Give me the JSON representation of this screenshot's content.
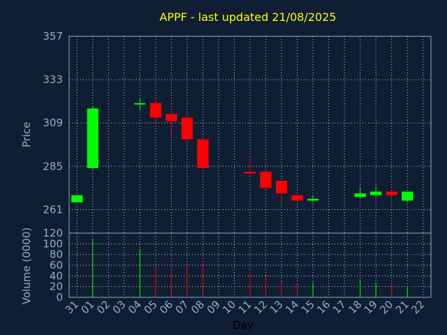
{
  "chart_data": {
    "type": "candlestick",
    "title": "APPF - last updated 21/08/2025",
    "price_axis": {
      "label": "Price",
      "ticks": [
        261,
        285,
        309,
        333,
        357
      ],
      "ylim": [
        248,
        357
      ]
    },
    "volume_axis": {
      "label": "Volume (0000)",
      "ticks": [
        0,
        20,
        40,
        60,
        80,
        100,
        120
      ],
      "ylim": [
        0,
        120
      ]
    },
    "xlabel": "Day",
    "days": [
      "31",
      "01",
      "02",
      "03",
      "04",
      "05",
      "06",
      "07",
      "08",
      "09",
      "10",
      "11",
      "12",
      "13",
      "14",
      "15",
      "16",
      "17",
      "18",
      "19",
      "20",
      "21",
      "22"
    ],
    "candles": [
      {
        "day": "31",
        "open": 265,
        "high": 269,
        "low": 265,
        "close": 269,
        "volume": 0
      },
      {
        "day": "01",
        "open": 284,
        "high": 318,
        "low": 283,
        "close": 317,
        "volume": 110
      },
      {
        "day": "04",
        "open": 320,
        "high": 323,
        "low": 316,
        "close": 320,
        "volume": 90
      },
      {
        "day": "05",
        "open": 320,
        "high": 321,
        "low": 309,
        "close": 312,
        "volume": 58
      },
      {
        "day": "06",
        "open": 314,
        "high": 314,
        "low": 302,
        "close": 310,
        "volume": 50
      },
      {
        "day": "07",
        "open": 312,
        "high": 314,
        "low": 299,
        "close": 300,
        "volume": 60
      },
      {
        "day": "08",
        "open": 300,
        "high": 300,
        "low": 284,
        "close": 284,
        "volume": 65
      },
      {
        "day": "11",
        "open": 282,
        "high": 290,
        "low": 280,
        "close": 281,
        "volume": 47
      },
      {
        "day": "12",
        "open": 282,
        "high": 282,
        "low": 272,
        "close": 273,
        "volume": 40
      },
      {
        "day": "13",
        "open": 277,
        "high": 277,
        "low": 265,
        "close": 270,
        "volume": 30
      },
      {
        "day": "14",
        "open": 269,
        "high": 269,
        "low": 265,
        "close": 266,
        "volume": 25
      },
      {
        "day": "15",
        "open": 266,
        "high": 269,
        "low": 265,
        "close": 267,
        "volume": 28
      },
      {
        "day": "18",
        "open": 268,
        "high": 273,
        "low": 267,
        "close": 270,
        "volume": 32
      },
      {
        "day": "19",
        "open": 269,
        "high": 274,
        "low": 268,
        "close": 271,
        "volume": 27
      },
      {
        "day": "20",
        "open": 271,
        "high": 272,
        "low": 268,
        "close": 269,
        "volume": 23
      },
      {
        "day": "21",
        "open": 266,
        "high": 271,
        "low": 265,
        "close": 271,
        "volume": 19
      }
    ],
    "colors": {
      "up": "#00ff00",
      "down": "#ff0000",
      "background": "#0f1e33",
      "grid": "#c8d0e0",
      "title": "#ffff00",
      "axis_text": "#8fb0cf"
    },
    "grid": true
  }
}
